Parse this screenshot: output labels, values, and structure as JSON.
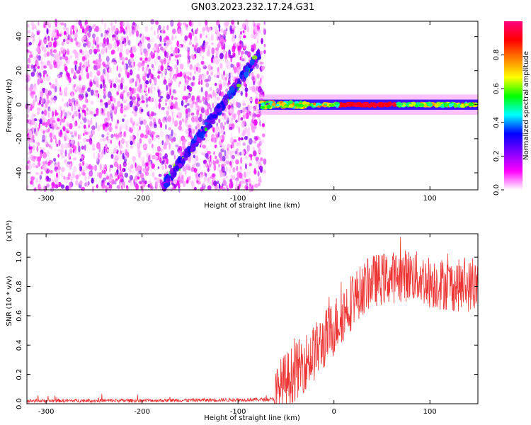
{
  "figure": {
    "title": "GN03.2023.232.17.24.G31"
  },
  "chart_data": [
    {
      "type": "heatmap",
      "xlabel": "Height of straight line (km)",
      "ylabel": "Frequency (Hz)",
      "xlim": [
        -320,
        150
      ],
      "ylim": [
        -50,
        49
      ],
      "xticks": [
        -300,
        -200,
        -100,
        0,
        100
      ],
      "yticks": [
        -40,
        -20,
        0,
        20,
        40
      ],
      "colorbar": {
        "label": "Normalized spectral amplitude",
        "range": [
          0,
          1
        ],
        "ticks": [
          0.0,
          0.2,
          0.4,
          0.6,
          0.8
        ],
        "colormap": [
          "#ffffff",
          "#ff00ff",
          "#8000ff",
          "#0000ff",
          "#00ffff",
          "#00ff00",
          "#ffff00",
          "#ff8000",
          "#ff0000",
          "#ff0080"
        ]
      },
      "features": {
        "noise_region_x": [
          -320,
          -72
        ],
        "drift_line": {
          "x": [
            -178,
            -78
          ],
          "y": [
            -48,
            30
          ]
        },
        "narrowband_line": {
          "x": [
            -78,
            150
          ],
          "y": 0
        },
        "strong_segment_x": [
          5,
          65
        ]
      }
    },
    {
      "type": "line",
      "xlabel": "Height of straight line (km)",
      "ylabel": "SNR (10 * v/v)",
      "yscale_label": "(x10⁴)",
      "xlim": [
        -320,
        150
      ],
      "ylim": [
        0,
        1.16
      ],
      "xticks": [
        -300,
        -200,
        -100,
        0,
        100
      ],
      "yticks": [
        0.0,
        0.2,
        0.4,
        0.6,
        0.8,
        1.0
      ],
      "series": [
        {
          "color": "#ee3333",
          "trend": {
            "x": [
              -320,
              -200,
              -100,
              -62,
              -55,
              -40,
              -20,
              0,
              20,
              40,
              60,
              80,
              100,
              120,
              150
            ],
            "y": [
              0.02,
              0.022,
              0.027,
              0.03,
              0.12,
              0.22,
              0.35,
              0.52,
              0.72,
              0.84,
              0.86,
              0.88,
              0.83,
              0.81,
              0.8
            ]
          },
          "noise_amplitude": [
            0.012,
            0.2
          ]
        }
      ]
    }
  ]
}
